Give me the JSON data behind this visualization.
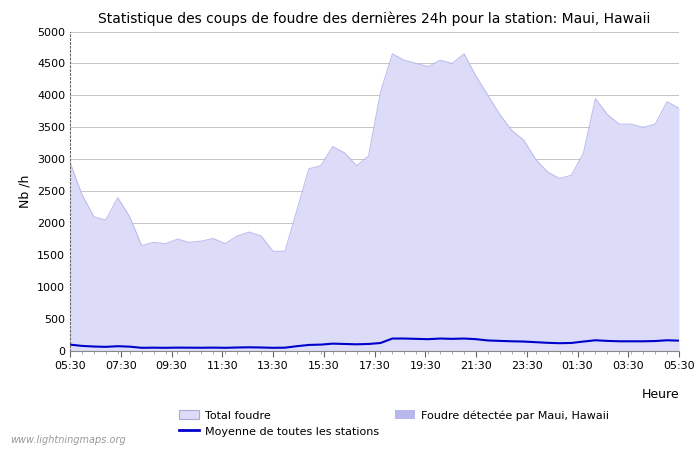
{
  "title": "Statistique des coups de foudre des dernières 24h pour la station: Maui, Hawaii",
  "xlabel": "Heure",
  "ylabel": "Nb /h",
  "watermark": "www.lightningmaps.org",
  "x_ticks": [
    "05:30",
    "07:30",
    "09:30",
    "11:30",
    "13:30",
    "15:30",
    "17:30",
    "19:30",
    "21:30",
    "23:30",
    "01:30",
    "03:30",
    "05:30"
  ],
  "ylim": [
    0,
    5000
  ],
  "yticks": [
    0,
    500,
    1000,
    1500,
    2000,
    2500,
    3000,
    3500,
    4000,
    4500,
    5000
  ],
  "legend_total_foudre": "Total foudre",
  "legend_moyenne": "Moyenne de toutes les stations",
  "legend_local": "Foudre détectée par Maui, Hawaii",
  "color_fill_total": "#dcdcf8",
  "color_fill_local": "#b8b8ee",
  "color_line_moyenne": "#0000cc",
  "background_color": "#ffffff",
  "grid_color": "#bbbbbb",
  "total_foudre": [
    2950,
    2450,
    2100,
    2050,
    2400,
    2100,
    1650,
    1700,
    1680,
    1750,
    1700,
    1720,
    1760,
    1680,
    1800,
    1860,
    1800,
    1560,
    1560,
    2200,
    2850,
    2900,
    3200,
    3100,
    2900,
    3050,
    4050,
    4650,
    4550,
    4500,
    4450,
    4550,
    4500,
    4650,
    4300,
    4000,
    3700,
    3450,
    3300,
    3000,
    2800,
    2700,
    2750,
    3100,
    3950,
    3700,
    3550,
    3550,
    3500,
    3550,
    3900,
    3800
  ],
  "moyenne": [
    100,
    80,
    70,
    65,
    75,
    68,
    50,
    52,
    50,
    53,
    52,
    51,
    53,
    50,
    55,
    58,
    55,
    50,
    52,
    75,
    95,
    100,
    115,
    110,
    105,
    110,
    125,
    195,
    195,
    190,
    185,
    195,
    190,
    195,
    185,
    165,
    158,
    152,
    148,
    138,
    128,
    122,
    126,
    148,
    168,
    158,
    152,
    152,
    152,
    156,
    168,
    162
  ]
}
